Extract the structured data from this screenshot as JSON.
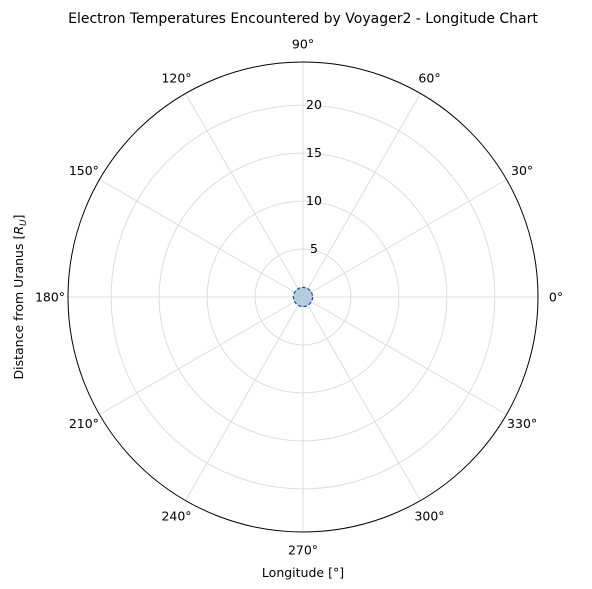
{
  "chart_data": {
    "type": "polar",
    "title": "Electron Temperatures Encountered by Voyager2 - Longitude Chart",
    "xlabel": "Longitude [°]",
    "ylabel_prefix": "Distance from Uranus [",
    "ylabel_symbol": "R",
    "ylabel_subscript": "U",
    "ylabel_suffix": "]",
    "theta_ticks": [
      {
        "deg": 0,
        "label": "0°"
      },
      {
        "deg": 30,
        "label": "30°"
      },
      {
        "deg": 60,
        "label": "60°"
      },
      {
        "deg": 90,
        "label": "90°"
      },
      {
        "deg": 120,
        "label": "120°"
      },
      {
        "deg": 150,
        "label": "150°"
      },
      {
        "deg": 180,
        "label": "180°"
      },
      {
        "deg": 210,
        "label": "210°"
      },
      {
        "deg": 240,
        "label": "240°"
      },
      {
        "deg": 270,
        "label": "270°"
      },
      {
        "deg": 300,
        "label": "300°"
      },
      {
        "deg": 330,
        "label": "330°"
      }
    ],
    "r_ticks": [
      {
        "value": 5,
        "label": "5"
      },
      {
        "value": 10,
        "label": "10"
      },
      {
        "value": 15,
        "label": "15"
      },
      {
        "value": 20,
        "label": "20"
      }
    ],
    "rlim": [
      0,
      24.5
    ],
    "grid": true,
    "series": [
      {
        "shape": "circle",
        "radius": 1.0,
        "fill": "#b3cde0",
        "edge": "#1f3fbf",
        "linestyle": "dashed"
      }
    ]
  },
  "colors": {
    "grid": "#dddddd",
    "frame": "#000000"
  }
}
